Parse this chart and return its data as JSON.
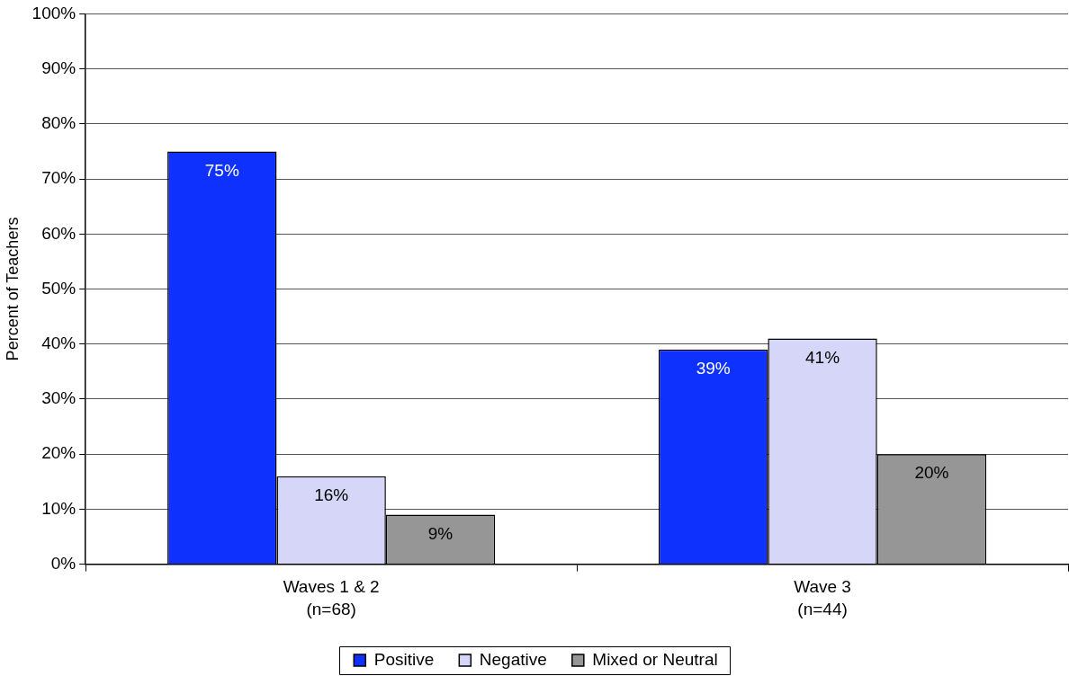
{
  "chart_data": {
    "type": "bar",
    "ylabel": "Percent of Teachers",
    "categories": [
      "Waves 1 & 2\n(n=68)",
      "Wave 3\n(n=44)"
    ],
    "series": [
      {
        "name": "Positive",
        "color": "#0f31fe",
        "values": [
          75,
          39
        ],
        "value_labels": [
          "75%",
          "39%"
        ]
      },
      {
        "name": "Negative",
        "color": "#d6d6f8",
        "values": [
          16,
          41
        ],
        "value_labels": [
          "16%",
          "41%"
        ]
      },
      {
        "name": "Mixed or Neutral",
        "color": "#969696",
        "values": [
          9,
          20
        ],
        "value_labels": [
          "9%",
          "20%"
        ]
      }
    ],
    "ylim": [
      0,
      100
    ],
    "yticks": [
      {
        "value": 0,
        "label": "0%"
      },
      {
        "value": 10,
        "label": "10%"
      },
      {
        "value": 20,
        "label": "20%"
      },
      {
        "value": 30,
        "label": "30%"
      },
      {
        "value": 40,
        "label": "40%"
      },
      {
        "value": 50,
        "label": "50%"
      },
      {
        "value": 60,
        "label": "60%"
      },
      {
        "value": 70,
        "label": "70%"
      },
      {
        "value": 80,
        "label": "80%"
      },
      {
        "value": 90,
        "label": "90%"
      },
      {
        "value": 100,
        "label": "100%"
      }
    ],
    "grid": "y",
    "legend": "bottom"
  }
}
